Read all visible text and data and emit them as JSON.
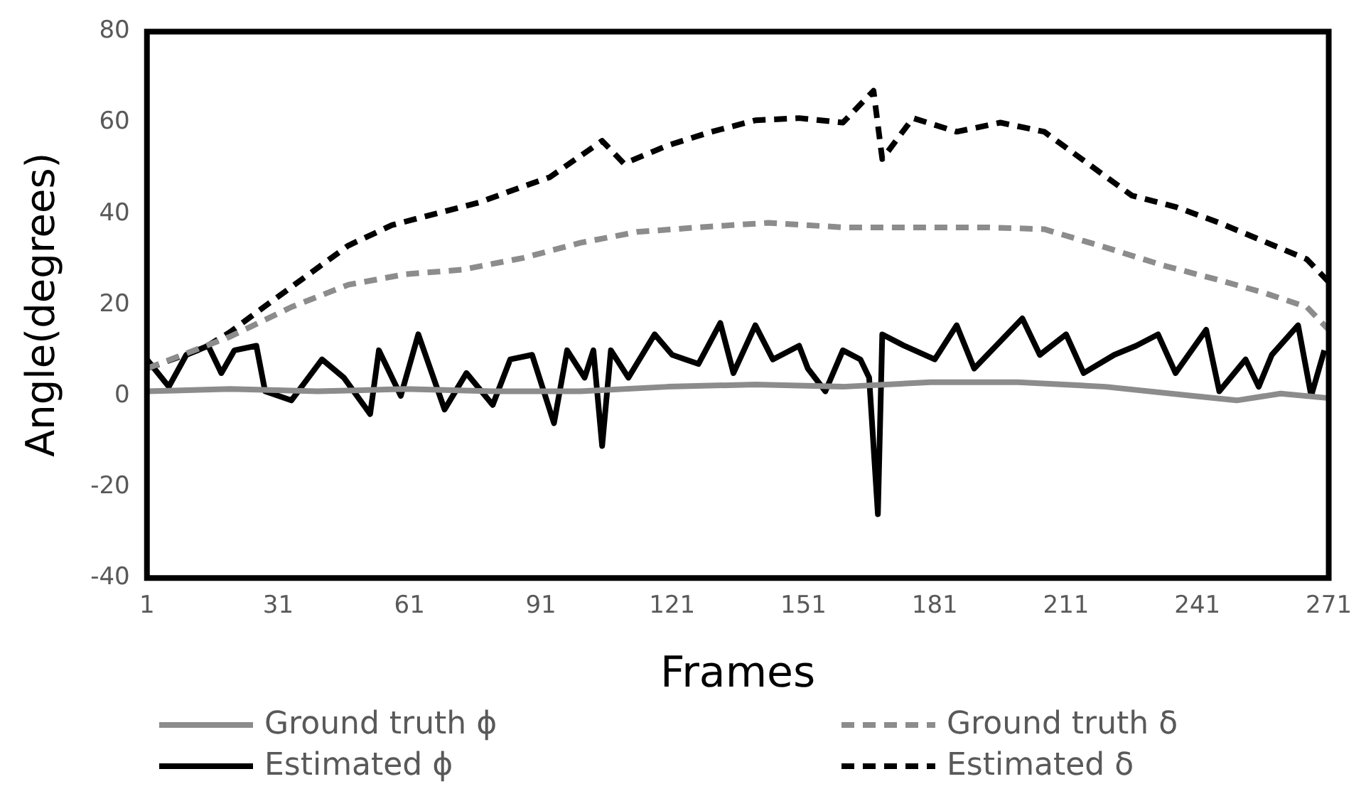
{
  "chart_data": {
    "type": "line",
    "xlabel": "Frames",
    "ylabel": "Angle(degrees)",
    "xlim": [
      1,
      271
    ],
    "xticks": [
      1,
      31,
      61,
      91,
      121,
      151,
      181,
      211,
      241,
      271
    ],
    "ylim": [
      -40,
      80
    ],
    "yticks": [
      -40,
      -20,
      0,
      20,
      40,
      60,
      80
    ],
    "grid": false,
    "legend": "bottom",
    "marker": "none",
    "series": [
      {
        "name": "Ground truth ϕ",
        "color": "#8c8c8c",
        "line_style": "solid",
        "x": [
          1,
          20,
          40,
          60,
          80,
          100,
          120,
          140,
          160,
          180,
          200,
          220,
          240,
          250,
          260,
          271
        ],
        "values": [
          1,
          1.5,
          1,
          1.5,
          1,
          1,
          2,
          2.5,
          2,
          3,
          3,
          2,
          0,
          -1,
          0.5,
          -0.5
        ]
      },
      {
        "name": "Ground truth δ",
        "color": "#8c8c8c",
        "line_style": "dashed",
        "x": [
          1,
          20,
          34,
          47,
          60,
          73,
          87,
          100,
          113,
          127,
          143,
          160,
          176,
          193,
          206,
          220,
          233,
          246,
          256,
          266,
          271
        ],
        "values": [
          6,
          13,
          19.5,
          24.4,
          26.7,
          27.7,
          30.3,
          33.6,
          36,
          37,
          38,
          37,
          37,
          37,
          36.6,
          32.6,
          28.7,
          25.4,
          22.7,
          19.5,
          14.5
        ]
      },
      {
        "name": "Estimated ϕ",
        "color": "#000000",
        "line_style": "solid",
        "x": [
          1,
          6,
          10,
          15,
          18,
          21,
          26,
          28,
          34,
          41,
          46,
          52,
          54,
          59,
          63,
          69,
          74,
          80,
          84,
          89,
          94,
          97,
          101,
          103,
          105,
          107,
          111,
          117,
          121,
          127,
          132,
          135,
          140,
          144,
          150,
          152,
          156,
          160,
          164,
          166,
          168,
          169,
          174,
          181,
          186,
          190,
          195,
          201,
          205,
          211,
          215,
          222,
          227,
          232,
          236,
          243,
          246,
          252,
          255,
          258,
          264,
          267,
          270
        ],
        "values": [
          8,
          2,
          9,
          11,
          5,
          10,
          11,
          1,
          -1,
          8,
          4,
          -4,
          10,
          0,
          13.5,
          -3,
          5,
          -2,
          8,
          9,
          -6,
          10,
          4,
          10,
          -11,
          10,
          4,
          13.5,
          9,
          7,
          16,
          5,
          15.5,
          8,
          11,
          6,
          1,
          10,
          8,
          4,
          -26,
          13.5,
          11,
          8,
          15.5,
          6,
          11,
          17,
          9,
          13.5,
          5,
          9,
          11,
          13.5,
          5,
          14.5,
          1,
          8,
          2,
          9,
          15.5,
          0,
          10
        ]
      },
      {
        "name": "Estimated δ",
        "color": "#000000",
        "line_style": "dashed",
        "x": [
          1,
          14,
          20,
          27,
          37,
          47,
          57,
          67,
          77,
          87,
          93,
          105,
          110,
          120,
          130,
          140,
          150,
          160,
          167,
          169,
          176,
          186,
          196,
          206,
          216,
          226,
          236,
          246,
          256,
          266,
          271
        ],
        "values": [
          6,
          10.5,
          14,
          19,
          26,
          33,
          37.5,
          40,
          42.5,
          46,
          48,
          56,
          51,
          55,
          58,
          60.5,
          61,
          60,
          67,
          52,
          61,
          58,
          60,
          58,
          51,
          44,
          41.5,
          38,
          34,
          30,
          25
        ]
      }
    ]
  }
}
